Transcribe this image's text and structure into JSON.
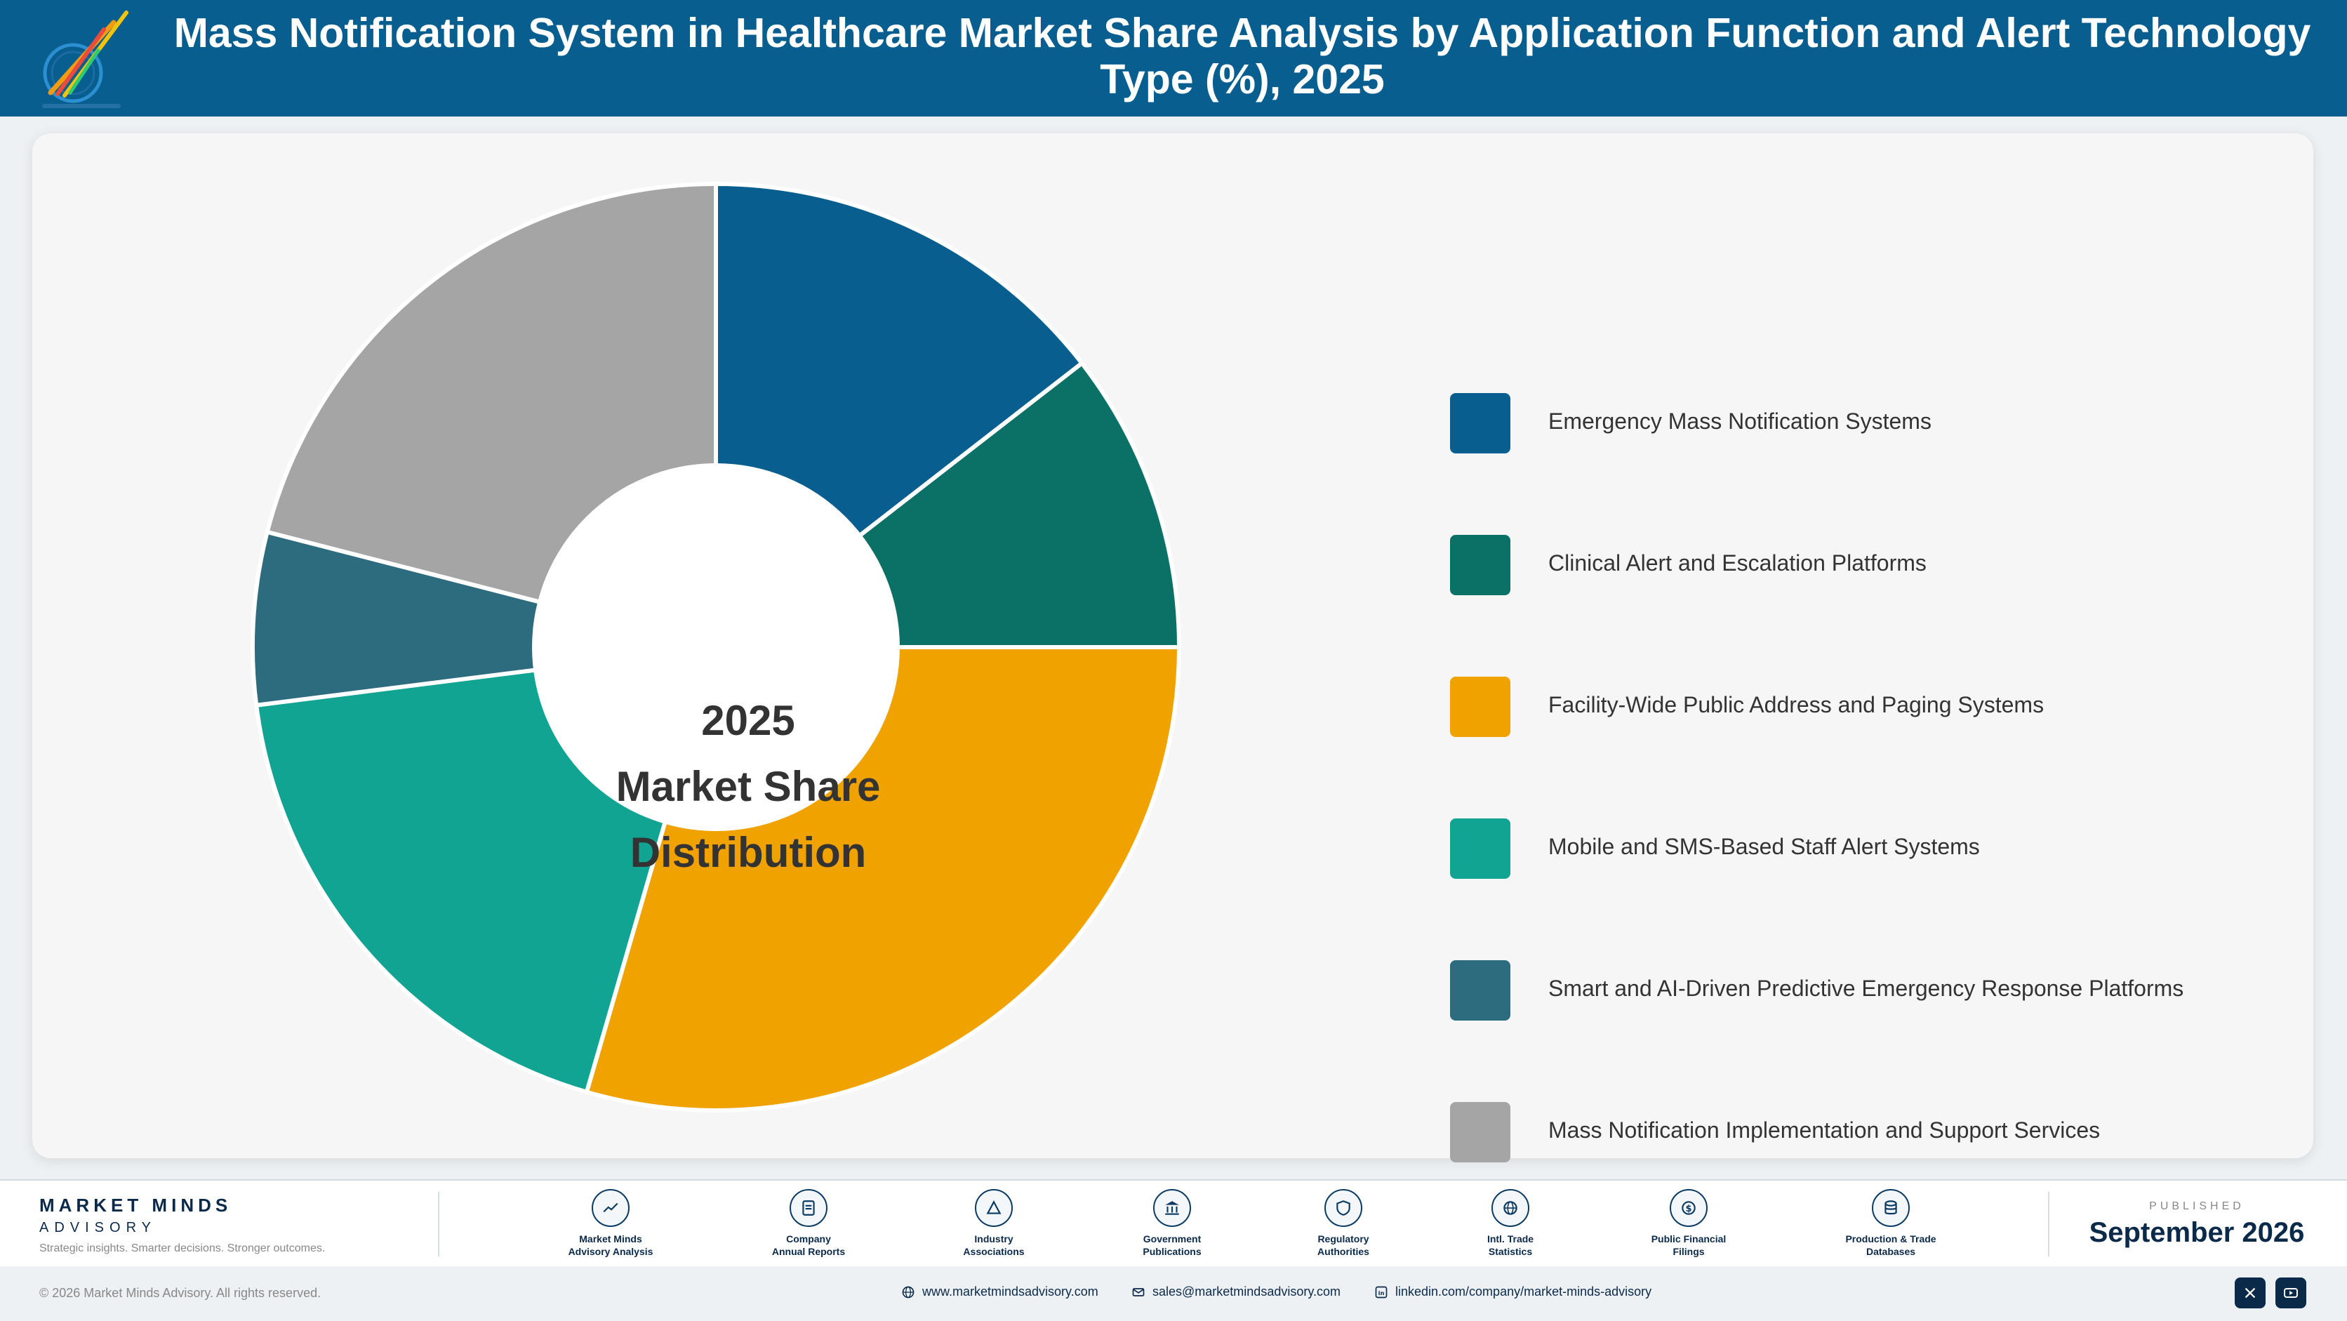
{
  "header": {
    "title_line1": "Mass Notification System in Healthcare Market Share Analysis by Application Function and Alert Technology",
    "title_line2": "Type (%), 2025"
  },
  "chart_data": {
    "type": "pie",
    "title": "Mass Notification System in Healthcare Market Share Analysis by Application Function and Alert Technology Type (%), 2025",
    "center_label": [
      "2025",
      "Market Share",
      "Distribution"
    ],
    "categories": [
      "Emergency Mass Notification Systems",
      "Clinical Alert and Escalation Platforms",
      "Facility-Wide Public Address and Paging Systems",
      "Mobile and SMS-Based Staff Alert Systems",
      "Smart and AI-Driven Predictive Emergency Response Platforms",
      "Mass Notification Implementation and Support Services"
    ],
    "values": [
      14.5,
      10.5,
      29.5,
      18.5,
      6.0,
      21.0
    ],
    "colors": [
      "#075e8f",
      "#0b7167",
      "#efa200",
      "#11a493",
      "#2d6b7e",
      "#a5a5a5"
    ],
    "legend_position": "right",
    "donut": true
  },
  "footer": {
    "brand_name": "MARKET MINDS",
    "brand_sub": "ADVISORY",
    "brand_tagline": "Strategic insights. Smarter decisions. Stronger outcomes.",
    "sources": [
      {
        "line1": "Market Minds",
        "line2": "Advisory Analysis",
        "icon": "trend-icon"
      },
      {
        "line1": "Company",
        "line2": "Annual Reports",
        "icon": "document-icon"
      },
      {
        "line1": "Industry",
        "line2": "Associations",
        "icon": "network-icon"
      },
      {
        "line1": "Government",
        "line2": "Publications",
        "icon": "government-icon"
      },
      {
        "line1": "Regulatory",
        "line2": "Authorities",
        "icon": "shield-icon"
      },
      {
        "line1": "Intl. Trade",
        "line2": "Statistics",
        "icon": "globe-icon"
      },
      {
        "line1": "Public Financial",
        "line2": "Filings",
        "icon": "dollar-icon"
      },
      {
        "line1": "Production & Trade",
        "line2": "Databases",
        "icon": "database-icon"
      }
    ],
    "published_label": "PUBLISHED",
    "published_date": "September 2026"
  },
  "bottom_bar": {
    "copyright": "© 2026 Market Minds Advisory. All rights reserved.",
    "website": "www.marketmindsadvisory.com",
    "email": "sales@marketmindsadvisory.com",
    "linkedin": "linkedin.com/company/market-minds-advisory"
  }
}
